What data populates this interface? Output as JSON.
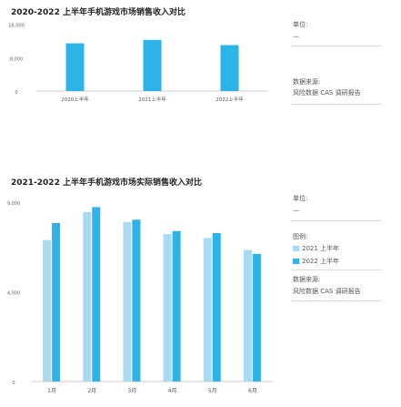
{
  "chart_data": [
    {
      "type": "bar",
      "title": "2020-2022 上半年手机游戏市场销售收入对比",
      "categories": [
        "2020上半年",
        "2021上半年",
        "2022上半年"
      ],
      "values": [
        11420,
        12250,
        11000
      ],
      "ylim": [
        0,
        17000
      ],
      "yticks": [
        "0",
        "8,000",
        "16,000"
      ],
      "unit_label": "单位:",
      "unit_value": "—",
      "source_label": "数据来源:",
      "source_value": "风险数据 CAS 调研报告",
      "color": "#2cb3e8"
    },
    {
      "type": "bar",
      "title": "2021-2022 上半年手机游戏市场实际销售收入对比",
      "categories": [
        "1月",
        "2月",
        "3月",
        "4月",
        "5月",
        "6月"
      ],
      "series": [
        {
          "name": "2021 上半年",
          "values": [
            7100,
            8500,
            8000,
            7400,
            7200,
            6600
          ],
          "color": "#a8dbf3"
        },
        {
          "name": "2022 上半年",
          "values": [
            7950,
            8750,
            8120,
            7550,
            7450,
            6400
          ],
          "color": "#2cb3e8"
        }
      ],
      "ylim": [
        0,
        9000
      ],
      "yticks": [
        "0",
        "4,500",
        "9,000"
      ],
      "unit_label": "单位:",
      "unit_value": "—",
      "legend_label": "图例:",
      "source_label": "数据来源:",
      "source_value": "风险数据 CAS 调研报告"
    }
  ]
}
